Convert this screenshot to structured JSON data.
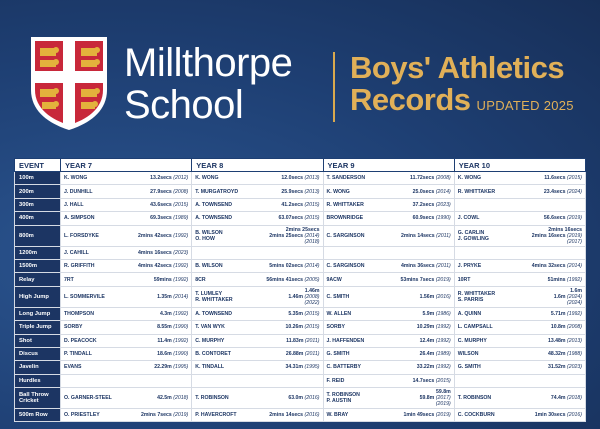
{
  "school": {
    "line1": "Millthorpe",
    "line2": "School"
  },
  "title": {
    "line1": "Boys' Athletics",
    "line2": "Records",
    "updated": "UPDATED 2025"
  },
  "table": {
    "headers": [
      "EVENT",
      "YEAR 7",
      "YEAR 8",
      "YEAR 9",
      "YEAR 10"
    ],
    "rows": [
      {
        "event": "100m",
        "cells": [
          {
            "name": "K. WONG",
            "result": "13.2secs",
            "year": "(2012)"
          },
          {
            "name": "K. WONG",
            "result": "12.0secs",
            "year": "(2013)"
          },
          {
            "name": "T. SANDERSON",
            "result": "11.72secs",
            "year": "(2008)"
          },
          {
            "name": "K. WONG",
            "result": "11.6secs",
            "year": "(2015)"
          }
        ]
      },
      {
        "event": "200m",
        "cells": [
          {
            "name": "J. DUNHILL",
            "result": "27.9secs",
            "year": "(2008)"
          },
          {
            "name": "T. MURGATROYD",
            "result": "25.9secs",
            "year": "(2013)"
          },
          {
            "name": "K. WONG",
            "result": "25.0secs",
            "year": "(2014)"
          },
          {
            "name": "R. WHITTAKER",
            "result": "23.4secs",
            "year": "(2024)"
          }
        ]
      },
      {
        "event": "300m",
        "cells": [
          {
            "name": "J. HALL",
            "result": "43.6secs",
            "year": "(2015)"
          },
          {
            "name": "A. TOWNSEND",
            "result": "41.2secs",
            "year": "(2015)"
          },
          {
            "name": "R. WHITTAKER",
            "result": "37.2secs",
            "year": "(2023)"
          },
          {
            "name": "",
            "result": "",
            "year": ""
          }
        ]
      },
      {
        "event": "400m",
        "cells": [
          {
            "name": "A. SIMPSON",
            "result": "69.3secs",
            "year": "(1989)"
          },
          {
            "name": "A. TOWNSEND",
            "result": "63.07secs",
            "year": "(2015)"
          },
          {
            "name": "BROWNRIDGE",
            "result": "60.9secs",
            "year": "(1990)"
          },
          {
            "name": "J. COWL",
            "result": "56.6secs",
            "year": "(2019)"
          }
        ]
      },
      {
        "event": "800m",
        "tall": true,
        "cells": [
          {
            "name": "L. FORSDYKE",
            "result": "2mins 42secs",
            "year": "(1992)"
          },
          {
            "name": "B. WILSON\nO. HOW",
            "result": "2mins 25secs\n2mins 25secs",
            "year": "(2014)\n(2018)"
          },
          {
            "name": "C. SARGINSON",
            "result": "2mins 14secs",
            "year": "(2011)"
          },
          {
            "name": "G. CARLIN\nJ. GOWLING",
            "result": "2mins 16secs\n2mins 16secs",
            "year": "(2019)\n(2017)"
          }
        ]
      },
      {
        "event": "1200m",
        "cells": [
          {
            "name": "J. CAHILL",
            "result": "4mins 16secs",
            "year": "(2023)"
          },
          {
            "name": "",
            "result": "",
            "year": ""
          },
          {
            "name": "",
            "result": "",
            "year": ""
          },
          {
            "name": "",
            "result": "",
            "year": ""
          }
        ]
      },
      {
        "event": "1500m",
        "cells": [
          {
            "name": "R. GRIFFITH",
            "result": "4mins 42secs",
            "year": "(1992)"
          },
          {
            "name": "B. WILSON",
            "result": "5mins 02secs",
            "year": "(2014)"
          },
          {
            "name": "C. SARGINSON",
            "result": "4mins 36secs",
            "year": "(2011)"
          },
          {
            "name": "J. PRYKE",
            "result": "4mins 32secs",
            "year": "(2014)"
          }
        ]
      },
      {
        "event": "Relay",
        "cells": [
          {
            "name": "7RT",
            "result": "59mins",
            "year": "(1992)"
          },
          {
            "name": "8CR",
            "result": "56mins 41secs",
            "year": "(2005)"
          },
          {
            "name": "9ACW",
            "result": "53mins 7secs",
            "year": "(2019)"
          },
          {
            "name": "10RT",
            "result": "51mins",
            "year": "(1992)"
          }
        ]
      },
      {
        "event": "High Jump",
        "tall": true,
        "cells": [
          {
            "name": "L. SOMMERVILE",
            "result": "1.35m",
            "year": "(2014)"
          },
          {
            "name": "T. LUMLEY\nR. WHITTAKER",
            "result": "1.46m\n1.46m",
            "year": "(2008)\n(2022)"
          },
          {
            "name": "C. SMITH",
            "result": "1.56m",
            "year": "(2016)"
          },
          {
            "name": "R. WHITTAKER\nS. PARRIS",
            "result": "1.6m\n1.6m",
            "year": "(2024)\n(2024)"
          }
        ]
      },
      {
        "event": "Long Jump",
        "cells": [
          {
            "name": "THOMPSON",
            "result": "4.3m",
            "year": "(1992)"
          },
          {
            "name": "A. TOWNSEND",
            "result": "5.35m",
            "year": "(2015)"
          },
          {
            "name": "W. ALLEN",
            "result": "5.9m",
            "year": "(1986)"
          },
          {
            "name": "A. QUINN",
            "result": "5.71m",
            "year": "(1992)"
          }
        ]
      },
      {
        "event": "Triple Jump",
        "cells": [
          {
            "name": "SORBY",
            "result": "8.55m",
            "year": "(1990)"
          },
          {
            "name": "T. VAN WYK",
            "result": "10.26m",
            "year": "(2015)"
          },
          {
            "name": "SORBY",
            "result": "10.29m",
            "year": "(1992)"
          },
          {
            "name": "L. CAMPSALL",
            "result": "10.8m",
            "year": "(2008)"
          }
        ]
      },
      {
        "event": "Shot",
        "cells": [
          {
            "name": "D. PEACOCK",
            "result": "11.4m",
            "year": "(1992)"
          },
          {
            "name": "C. MURPHY",
            "result": "11.83m",
            "year": "(2011)"
          },
          {
            "name": "J. HAFFENDEN",
            "result": "12.4m",
            "year": "(1992)"
          },
          {
            "name": "C. MURPHY",
            "result": "13.48m",
            "year": "(2013)"
          }
        ]
      },
      {
        "event": "Discus",
        "cells": [
          {
            "name": "P. TINDALL",
            "result": "18.6m",
            "year": "(1990)"
          },
          {
            "name": "B. CONTORET",
            "result": "26.88m",
            "year": "(2011)"
          },
          {
            "name": "G. SMITH",
            "result": "26.4m",
            "year": "(1989)"
          },
          {
            "name": "WILSON",
            "result": "48.32m",
            "year": "(1988)"
          }
        ]
      },
      {
        "event": "Javelin",
        "cells": [
          {
            "name": "EVANS",
            "result": "22.29m",
            "year": "(1995)"
          },
          {
            "name": "K. TINDALL",
            "result": "34.31m",
            "year": "(1995)"
          },
          {
            "name": "C. BATTERBY",
            "result": "33.22m",
            "year": "(1992)"
          },
          {
            "name": "G. SMITH",
            "result": "31.52m",
            "year": "(2023)"
          }
        ]
      },
      {
        "event": "Hurdles",
        "cells": [
          {
            "name": "",
            "result": "",
            "year": ""
          },
          {
            "name": "",
            "result": "",
            "year": ""
          },
          {
            "name": "F. REID",
            "result": "14.7secs",
            "year": "(2015)"
          },
          {
            "name": "",
            "result": "",
            "year": ""
          }
        ]
      },
      {
        "event": "Ball Throw\nCricket",
        "tall": true,
        "cells": [
          {
            "name": "O. GARNER-STEEL",
            "result": "42.5m",
            "year": "(2018)"
          },
          {
            "name": "T. ROBINSON",
            "result": "63.0m",
            "year": "(2016)"
          },
          {
            "name": "T. ROBINSON\nP. AUSTIN",
            "result": "59.8m\n59.8m",
            "year": "(2017)\n(2019)"
          },
          {
            "name": "T. ROBINSON",
            "result": "74.4m",
            "year": "(2018)"
          }
        ]
      },
      {
        "event": "500m Row",
        "cells": [
          {
            "name": "O. PRIESTLEY",
            "result": "2mins 7secs",
            "year": "(2019)"
          },
          {
            "name": "P. HAVERCROFT",
            "result": "2mins 14secs",
            "year": "(2016)"
          },
          {
            "name": "W. BRAY",
            "result": "1min 49secs",
            "year": "(2019)"
          },
          {
            "name": "C. COCKBURN",
            "result": "1min 30secs",
            "year": "(2016)"
          }
        ]
      }
    ]
  }
}
